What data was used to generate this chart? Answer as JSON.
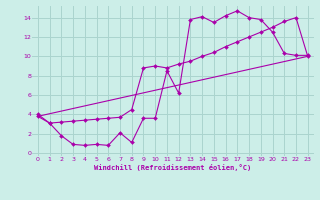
{
  "background_color": "#cceee8",
  "grid_color": "#aad4ce",
  "line_color": "#aa00aa",
  "xlabel": "Windchill (Refroidissement éolien,°C)",
  "xlim": [
    -0.5,
    23.5
  ],
  "ylim": [
    -0.3,
    15.2
  ],
  "xticks": [
    0,
    1,
    2,
    3,
    4,
    5,
    6,
    7,
    8,
    9,
    10,
    11,
    12,
    13,
    14,
    15,
    16,
    17,
    18,
    19,
    20,
    21,
    22,
    23
  ],
  "yticks": [
    0,
    2,
    4,
    6,
    8,
    10,
    12,
    14
  ],
  "series1_x": [
    0,
    1,
    2,
    3,
    4,
    5,
    6,
    7,
    8,
    9,
    10,
    11,
    12,
    13,
    14,
    15,
    16,
    17,
    18,
    19,
    20,
    21,
    22,
    23
  ],
  "series1_y": [
    4.0,
    3.1,
    1.8,
    0.9,
    0.8,
    0.9,
    0.8,
    2.1,
    1.1,
    3.6,
    3.6,
    8.5,
    6.2,
    13.8,
    14.1,
    13.5,
    14.2,
    14.7,
    14.0,
    13.8,
    12.5,
    10.3,
    10.1,
    10.1
  ],
  "series2_x": [
    0,
    1,
    2,
    3,
    4,
    5,
    6,
    7,
    8,
    9,
    10,
    11,
    12,
    13,
    14,
    15,
    16,
    17,
    18,
    19,
    20,
    21,
    22,
    23
  ],
  "series2_y": [
    3.8,
    3.1,
    3.2,
    3.3,
    3.4,
    3.5,
    3.6,
    3.7,
    4.5,
    8.8,
    9.0,
    8.8,
    9.2,
    9.5,
    10.0,
    10.4,
    11.0,
    11.5,
    12.0,
    12.5,
    13.0,
    13.6,
    14.0,
    10.0
  ],
  "series3_x": [
    0,
    23
  ],
  "series3_y": [
    3.8,
    10.0
  ]
}
